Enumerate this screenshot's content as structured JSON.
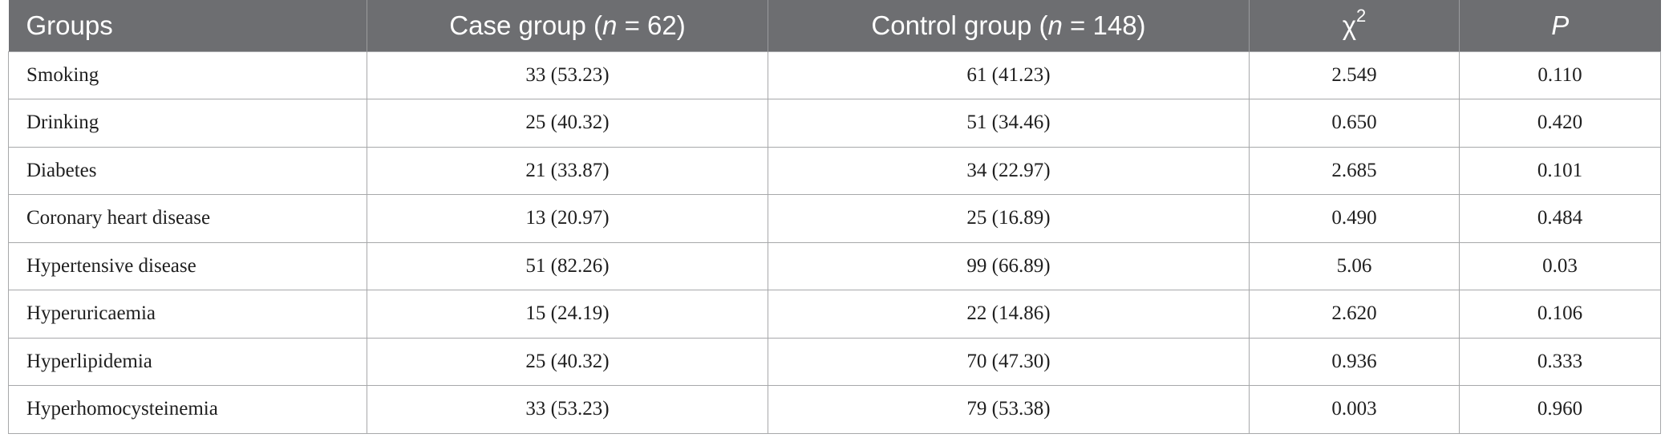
{
  "table": {
    "headers": {
      "groups": "Groups",
      "case_prefix": "Case group (",
      "case_n": "n",
      "case_suffix": " = 62)",
      "control_prefix": "Control group (",
      "control_n": "n",
      "control_suffix": " = 148)",
      "chi": "χ",
      "chi_sup": "2",
      "p": "P"
    },
    "rows": [
      {
        "group": "Smoking",
        "case": "33 (53.23)",
        "control": "61 (41.23)",
        "chi2": "2.549",
        "p": "0.110"
      },
      {
        "group": "Drinking",
        "case": "25 (40.32)",
        "control": "51 (34.46)",
        "chi2": "0.650",
        "p": "0.420"
      },
      {
        "group": "Diabetes",
        "case": "21 (33.87)",
        "control": "34 (22.97)",
        "chi2": "2.685",
        "p": "0.101"
      },
      {
        "group": "Coronary heart disease",
        "case": "13 (20.97)",
        "control": "25 (16.89)",
        "chi2": "0.490",
        "p": "0.484"
      },
      {
        "group": "Hypertensive disease",
        "case": "51 (82.26)",
        "control": "99 (66.89)",
        "chi2": "5.06",
        "p": "0.03"
      },
      {
        "group": "Hyperuricaemia",
        "case": "15 (24.19)",
        "control": "22 (14.86)",
        "chi2": "2.620",
        "p": "0.106"
      },
      {
        "group": "Hyperlipidemia",
        "case": "25 (40.32)",
        "control": "70 (47.30)",
        "chi2": "0.936",
        "p": "0.333"
      },
      {
        "group": "Hyperhomocysteinemia",
        "case": "33 (53.23)",
        "control": "79 (53.38)",
        "chi2": "0.003",
        "p": "0.960"
      }
    ]
  }
}
